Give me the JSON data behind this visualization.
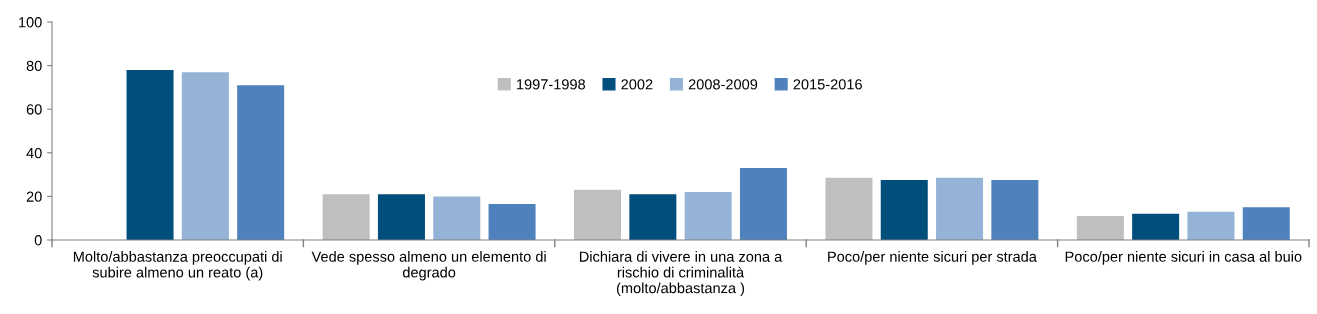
{
  "chart_data": {
    "type": "bar",
    "categories": [
      "Molto/abbastanza preoccupati di\nsubire almeno un reato (a)",
      "Vede spesso almeno un elemento di\ndegrado",
      "Dichiara di vivere in una zona a\nrischio di criminalità\n(molto/abbastanza )",
      "Poco/per niente sicuri per strada",
      "Poco/per niente sicuri in casa al buio"
    ],
    "series": [
      {
        "name": "1997-1998",
        "color": "#bfbfbf",
        "values": [
          null,
          21,
          23,
          28.5,
          11
        ]
      },
      {
        "name": "2002",
        "color": "#004e7c",
        "values": [
          78,
          21,
          21,
          27.5,
          12
        ]
      },
      {
        "name": "2008-2009",
        "color": "#95b3d7",
        "values": [
          77,
          20,
          22,
          28.5,
          13
        ]
      },
      {
        "name": "2015-2016",
        "color": "#4f81bd",
        "values": [
          71,
          16.5,
          33,
          27.5,
          15
        ]
      }
    ],
    "ylim": [
      0,
      100
    ],
    "yticks": [
      0,
      20,
      40,
      60,
      80,
      100
    ],
    "grid": false,
    "legend": "top"
  }
}
